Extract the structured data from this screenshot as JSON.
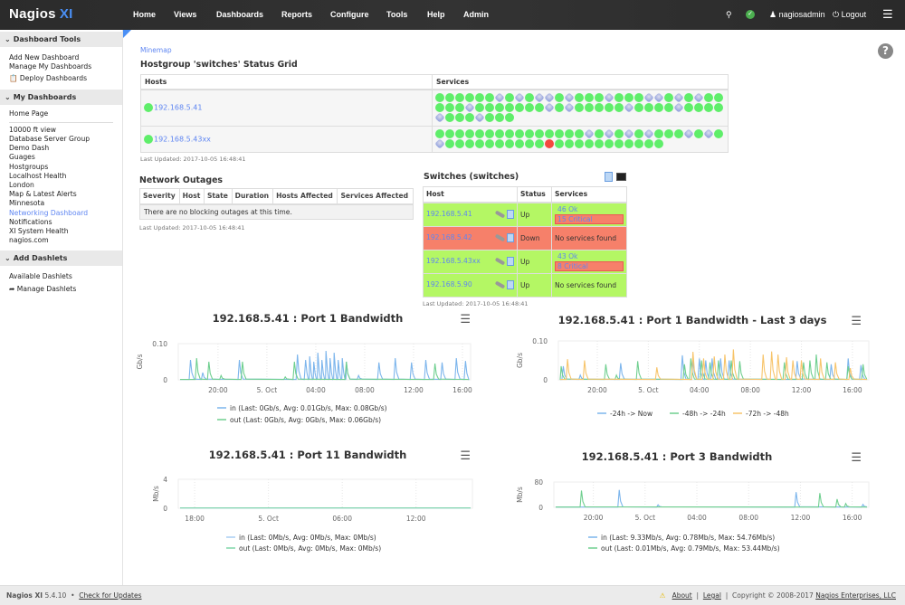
{
  "topbar": {
    "logo": "Nagios",
    "logo_xi": "XI",
    "nav": [
      "Home",
      "Views",
      "Dashboards",
      "Reports",
      "Configure",
      "Tools",
      "Help",
      "Admin"
    ],
    "user": "nagiosadmin",
    "logout": "Logout",
    "status_color": "#4caf50"
  },
  "sidebar": {
    "sections": [
      {
        "title": "Dashboard Tools",
        "items": [
          "Add New Dashboard",
          "Manage My Dashboards",
          "Deploy Dashboards"
        ]
      },
      {
        "title": "My Dashboards",
        "home": "Home Page",
        "items": [
          "10000 ft view",
          "Database Server Group",
          "Demo Dash",
          "Guages",
          "Hostgroups",
          "Localhost Health",
          "London",
          "Map & Latest Alerts",
          "Minnesota",
          "Networking Dashboard",
          "Notifications",
          "XI System Health",
          "nagios.com"
        ],
        "active": "Networking Dashboard"
      },
      {
        "title": "Add Dashlets",
        "items": [
          "Available Dashlets",
          "Manage Dashlets"
        ]
      }
    ]
  },
  "minemap": {
    "link": "Minemap",
    "title": "Hostgroup 'switches' Status Grid",
    "columns": [
      "Hosts",
      "Services"
    ],
    "rows": [
      {
        "host": "192.168.5.41",
        "services": "ggggggpgpgppgpgggpgggppgpgpgggggpgggggggpgpgggggpggggpggggpgggpggg"
      },
      {
        "host": "192.168.5.43xx",
        "services": "gggggggggggggggpgpgpgpgggpgpgpggggggggggrggggggggggg"
      }
    ],
    "updated": "Last Updated: 2017-10-05 16:48:41"
  },
  "outages": {
    "title": "Network Outages",
    "columns": [
      "Severity",
      "Host",
      "State",
      "Duration",
      "Hosts Affected",
      "Services Affected"
    ],
    "empty": "There are no blocking outages at this time.",
    "updated": "Last Updated: 2017-10-05 16:48:41"
  },
  "switches": {
    "title": "Switches (switches)",
    "columns": [
      "Host",
      "Status",
      "Services"
    ],
    "rows": [
      {
        "host": "192.168.5.41",
        "status": "Up",
        "ok": "46 Ok",
        "critical": "15 Critical"
      },
      {
        "host": "192.168.5.42",
        "status": "Down",
        "none": "No services found"
      },
      {
        "host": "192.168.5.43xx",
        "status": "Up",
        "ok": "43 Ok",
        "critical": "8 Critical"
      },
      {
        "host": "192.168.5.90",
        "status": "Up",
        "none": "No services found"
      }
    ],
    "colors": {
      "up": "#b4f764",
      "down": "#f6806a"
    },
    "updated": "Last Updated: 2017-10-05 16:48:41"
  },
  "chart_data": [
    {
      "type": "line",
      "title": "192.168.5.41 : Port 1 Bandwidth",
      "ylabel": "Gb/s",
      "xlabel": "",
      "ylim": [
        0,
        0.1
      ],
      "yticks": [
        "0",
        "0.10"
      ],
      "xlim": [
        "2017-10-04 16:45",
        "2017-10-05 16:40"
      ],
      "xticks": [
        [
          "2017-10-04 20:00",
          "20:00"
        ],
        [
          "2017-10-05 00:00",
          "5. Oct"
        ],
        [
          "2017-10-05 04:00",
          "04:00"
        ],
        [
          "2017-10-05 08:00",
          "08:00"
        ],
        [
          "2017-10-05 12:00",
          "12:00"
        ],
        [
          "2017-10-05 16:00",
          "16:00"
        ]
      ],
      "grid": true,
      "legend": "bottom",
      "series": [
        {
          "name": "in (Last: 0Gb/s, Avg: 0.01Gb/s, Max: 0.08Gb/s)",
          "color": "#7cb5ec",
          "spikes": [
            [
              "2017-10-04 17:45",
              0.055
            ],
            [
              "2017-10-04 18:45",
              0.02
            ],
            [
              "2017-10-04 21:45",
              0.055
            ],
            [
              "2017-10-05 02:30",
              0.07
            ],
            [
              "2017-10-05 03:10",
              0.055
            ],
            [
              "2017-10-05 03:30",
              0.065
            ],
            [
              "2017-10-05 03:50",
              0.05
            ],
            [
              "2017-10-05 04:10",
              0.075
            ],
            [
              "2017-10-05 04:30",
              0.055
            ],
            [
              "2017-10-05 04:50",
              0.08
            ],
            [
              "2017-10-05 05:10",
              0.06
            ],
            [
              "2017-10-05 05:30",
              0.075
            ],
            [
              "2017-10-05 05:50",
              0.055
            ],
            [
              "2017-10-05 06:10",
              0.06
            ],
            [
              "2017-10-05 06:30",
              0.05
            ],
            [
              "2017-10-05 07:30",
              0.012
            ],
            [
              "2017-10-05 09:10",
              0.048
            ],
            [
              "2017-10-05 10:30",
              0.06
            ],
            [
              "2017-10-05 11:50",
              0.048
            ],
            [
              "2017-10-05 13:00",
              0.055
            ],
            [
              "2017-10-05 14:20",
              0.048
            ],
            [
              "2017-10-05 15:30",
              0.06
            ],
            [
              "2017-10-05 16:15",
              0.052
            ]
          ]
        },
        {
          "name": "out (Last: 0Gb/s, Avg: 0Gb/s, Max: 0.06Gb/s)",
          "color": "#6fcf8f",
          "spikes": [
            [
              "2017-10-04 18:15",
              0.06
            ],
            [
              "2017-10-04 19:15",
              0.05
            ],
            [
              "2017-10-04 20:15",
              0.012
            ],
            [
              "2017-10-04 22:00",
              0.05
            ],
            [
              "2017-10-05 01:30",
              0.008
            ],
            [
              "2017-10-05 02:15",
              0.05
            ],
            [
              "2017-10-05 06:30",
              0.05
            ],
            [
              "2017-10-05 13:45",
              0.045
            ]
          ]
        }
      ]
    },
    {
      "type": "line",
      "title": "192.168.5.41 : Port 1 Bandwidth - Last 3 days",
      "ylabel": "Gb/s",
      "xlabel": "",
      "ylim": [
        0,
        0.1
      ],
      "yticks": [
        "0",
        "0.10"
      ],
      "xlim": [
        "2017-10-04 16:57",
        "2017-10-05 17:17"
      ],
      "xticks": [
        [
          "2017-10-04 20:00",
          "20:00"
        ],
        [
          "2017-10-05 00:00",
          "5. Oct"
        ],
        [
          "2017-10-05 04:00",
          "04:00"
        ],
        [
          "2017-10-05 08:00",
          "08:00"
        ],
        [
          "2017-10-05 12:00",
          "12:00"
        ],
        [
          "2017-10-05 16:00",
          "16:00"
        ]
      ],
      "grid": true,
      "legend": "bottom",
      "series": [
        {
          "name": "-24h -> Now",
          "color": "#7cb5ec",
          "spikes": [
            [
              "2017-10-04 17:20",
              0.035
            ],
            [
              "2017-10-04 18:40",
              0.012
            ],
            [
              "2017-10-04 21:50",
              0.043
            ],
            [
              "2017-10-05 02:40",
              0.063
            ],
            [
              "2017-10-05 03:30",
              0.05
            ],
            [
              "2017-10-05 04:00",
              0.055
            ],
            [
              "2017-10-05 04:30",
              0.05
            ],
            [
              "2017-10-05 05:00",
              0.055
            ],
            [
              "2017-10-05 05:40",
              0.055
            ],
            [
              "2017-10-05 06:20",
              0.05
            ],
            [
              "2017-10-05 11:40",
              0.048
            ],
            [
              "2017-10-05 14:20",
              0.04
            ],
            [
              "2017-10-05 15:40",
              0.055
            ],
            [
              "2017-10-05 16:40",
              0.038
            ]
          ]
        },
        {
          "name": "-48h -> -24h",
          "color": "#6fcf8f",
          "spikes": [
            [
              "2017-10-04 17:10",
              0.035
            ],
            [
              "2017-10-04 20:40",
              0.04
            ],
            [
              "2017-10-04 21:30",
              0.012
            ],
            [
              "2017-10-04 23:10",
              0.048
            ],
            [
              "2017-10-05 02:50",
              0.04
            ],
            [
              "2017-10-05 03:20",
              0.055
            ],
            [
              "2017-10-05 04:10",
              0.05
            ],
            [
              "2017-10-05 04:50",
              0.045
            ],
            [
              "2017-10-05 05:30",
              0.05
            ],
            [
              "2017-10-05 06:30",
              0.05
            ],
            [
              "2017-10-05 07:10",
              0.048
            ],
            [
              "2017-10-05 10:40",
              0.045
            ],
            [
              "2017-10-05 12:10",
              0.045
            ],
            [
              "2017-10-05 12:40",
              0.05
            ],
            [
              "2017-10-05 13:10",
              0.065
            ],
            [
              "2017-10-05 14:00",
              0.045
            ],
            [
              "2017-10-05 15:40",
              0.035
            ],
            [
              "2017-10-05 16:50",
              0.04
            ]
          ]
        },
        {
          "name": "-72h -> -48h",
          "color": "#f7c46a",
          "spikes": [
            [
              "2017-10-04 17:40",
              0.053
            ],
            [
              "2017-10-04 19:00",
              0.05
            ],
            [
              "2017-10-05 00:40",
              0.032
            ],
            [
              "2017-10-05 03:30",
              0.072
            ],
            [
              "2017-10-05 04:20",
              0.055
            ],
            [
              "2017-10-05 05:10",
              0.06
            ],
            [
              "2017-10-05 06:00",
              0.065
            ],
            [
              "2017-10-05 06:40",
              0.078
            ],
            [
              "2017-10-05 09:00",
              0.065
            ],
            [
              "2017-10-05 09:40",
              0.073
            ],
            [
              "2017-10-05 10:10",
              0.065
            ],
            [
              "2017-10-05 10:50",
              0.058
            ],
            [
              "2017-10-05 11:20",
              0.05
            ],
            [
              "2017-10-05 12:00",
              0.05
            ],
            [
              "2017-10-05 13:30",
              0.055
            ],
            [
              "2017-10-05 14:40",
              0.045
            ],
            [
              "2017-10-05 15:50",
              0.03
            ]
          ]
        }
      ]
    },
    {
      "type": "line",
      "title": "192.168.5.41 : Port 11 Bandwidth",
      "ylabel": "Mb/s",
      "xlabel": "",
      "ylim": [
        0,
        4
      ],
      "yticks": [
        "0",
        "4"
      ],
      "xlim": [
        "2017-10-04 16:40",
        "2017-10-05 16:35"
      ],
      "xticks": [
        [
          "2017-10-04 18:00",
          "18:00"
        ],
        [
          "2017-10-05 00:00",
          "5. Oct"
        ],
        [
          "2017-10-05 06:00",
          "06:00"
        ],
        [
          "2017-10-05 12:00",
          "12:00"
        ]
      ],
      "grid": true,
      "legend": "bottom",
      "series": [
        {
          "name": "in (Last: 0Mb/s, Avg: 0Mb/s, Max: 0Mb/s)",
          "color": "#a9cdf3",
          "spikes": []
        },
        {
          "name": "out (Last: 0Mb/s, Avg: 0Mb/s, Max: 0Mb/s)",
          "color": "#7fd6a8",
          "spikes": []
        }
      ]
    },
    {
      "type": "line",
      "title": "192.168.5.41 : Port 3 Bandwidth",
      "ylabel": "Mb/s",
      "xlabel": "",
      "ylim": [
        0,
        80
      ],
      "yticks": [
        "0",
        "80"
      ],
      "xlim": [
        "2017-10-04 16:57",
        "2017-10-05 17:17"
      ],
      "xticks": [
        [
          "2017-10-04 20:00",
          "20:00"
        ],
        [
          "2017-10-05 00:00",
          "5. Oct"
        ],
        [
          "2017-10-05 04:00",
          "04:00"
        ],
        [
          "2017-10-05 08:00",
          "08:00"
        ],
        [
          "2017-10-05 12:00",
          "12:00"
        ],
        [
          "2017-10-05 16:00",
          "16:00"
        ]
      ],
      "grid": true,
      "legend": "bottom",
      "series": [
        {
          "name": "in (Last: 9.33Mb/s, Avg: 0.78Mb/s, Max: 54.76Mb/s)",
          "color": "#7cb5ec",
          "spikes": [
            [
              "2017-10-04 22:00",
              55
            ],
            [
              "2017-10-05 01:00",
              8
            ],
            [
              "2017-10-05 11:40",
              48
            ],
            [
              "2017-10-05 16:50",
              9
            ]
          ]
        },
        {
          "name": "out (Last: 0.01Mb/s, Avg: 0.79Mb/s, Max: 53.44Mb/s)",
          "color": "#6fcf8f",
          "spikes": [
            [
              "2017-10-04 19:05",
              53
            ],
            [
              "2017-10-05 13:30",
              45
            ],
            [
              "2017-10-05 14:50",
              26
            ],
            [
              "2017-10-05 15:30",
              12
            ]
          ]
        }
      ]
    }
  ],
  "footer": {
    "product": "Nagios XI",
    "version": "5.4.10",
    "check_updates": "Check for Updates",
    "about": "About",
    "legal": "Legal",
    "copyright": "Copyright © 2008-2017",
    "company": "Nagios Enterprises, LLC"
  }
}
